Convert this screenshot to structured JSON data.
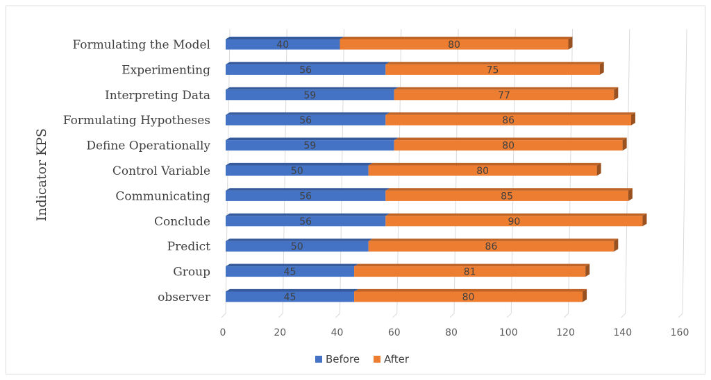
{
  "chart_data": {
    "type": "bar",
    "orientation": "horizontal",
    "stacked": true,
    "style": "3d",
    "categories": [
      "Formulating the Model",
      "Experimenting",
      "Interpreting Data",
      "Formulating Hypotheses",
      "Define Operationally",
      "Control Variable",
      "Communicating",
      "Conclude",
      "Predict",
      "Group",
      "observer"
    ],
    "series": [
      {
        "name": "Before",
        "color": "#4472c4",
        "values": [
          40,
          56,
          59,
          56,
          59,
          50,
          56,
          56,
          50,
          45,
          45
        ]
      },
      {
        "name": "After",
        "color": "#ed7d31",
        "values": [
          80,
          75,
          77,
          86,
          80,
          80,
          85,
          90,
          86,
          81,
          80
        ]
      }
    ],
    "title": "",
    "xlabel": "",
    "ylabel": "Indicator  KPS",
    "xlim": [
      0,
      160
    ],
    "xticks": [
      0,
      20,
      40,
      60,
      80,
      100,
      120,
      140,
      160
    ],
    "grid": true,
    "legend": "bottom"
  }
}
